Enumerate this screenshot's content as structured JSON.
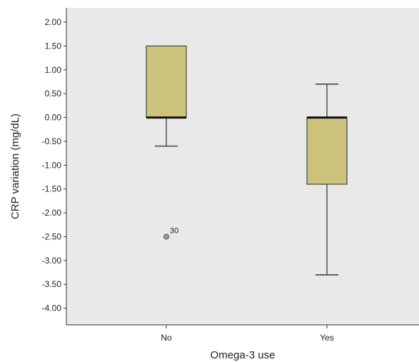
{
  "chart_data": {
    "type": "boxplot",
    "xlabel": "Omega-3 use",
    "ylabel": "CRP variation (mg/dL)",
    "ylim": [
      -4.35,
      2.3
    ],
    "y_ticks": [
      2.0,
      1.5,
      1.0,
      0.5,
      0.0,
      -0.5,
      -1.0,
      -1.5,
      -2.0,
      -2.5,
      -3.0,
      -3.5,
      -4.0
    ],
    "y_tick_labels": [
      "2.00",
      "1.50",
      "1.00",
      "0.50",
      "0.00",
      "-0.50",
      "-1.00",
      "-1.50",
      "-2.00",
      "-2.50",
      "-3.00",
      "-3.50",
      "-4.00"
    ],
    "grid": false,
    "categories": [
      "No",
      "Yes"
    ],
    "boxes": [
      {
        "category": "No",
        "whisker_low": -0.6,
        "q1": 0.0,
        "median": 0.0,
        "q3": 1.5,
        "whisker_high": 1.5,
        "outliers": [
          {
            "value": -2.5,
            "label": "30"
          }
        ]
      },
      {
        "category": "Yes",
        "whisker_low": -3.3,
        "q1": -1.4,
        "median": 0.0,
        "q3": 0.0,
        "whisker_high": 0.7,
        "outliers": []
      }
    ],
    "colors": {
      "plot_background": "#e9e9e9",
      "box_fill": "#cdc37c",
      "box_stroke": "#444444",
      "outlier_fill": "#9a9a9a"
    }
  }
}
